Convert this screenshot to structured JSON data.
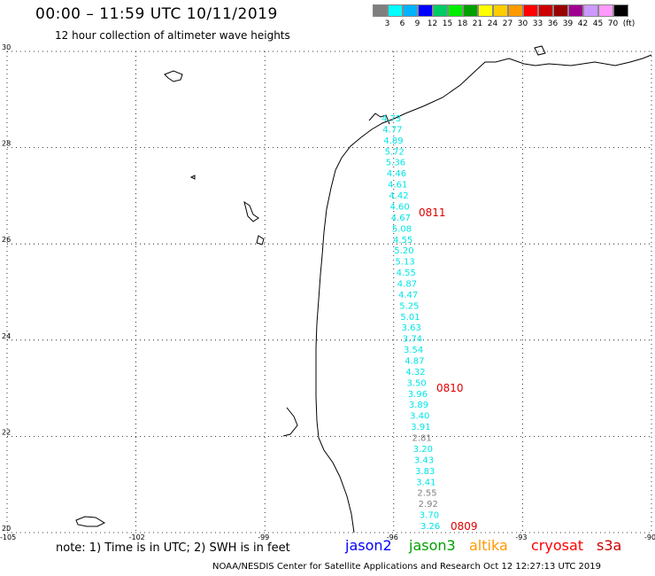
{
  "header": {
    "title": "00:00 – 11:59 UTC 10/11/2019",
    "subtitle": "12 hour collection of altimeter wave heights"
  },
  "legend": {
    "colors": [
      "#7f7f7f",
      "#00ffff",
      "#00b3ff",
      "#0000ff",
      "#00cc66",
      "#00ee00",
      "#00a000",
      "#ffff00",
      "#ffcc00",
      "#ff9900",
      "#ff0000",
      "#cc0000",
      "#990000",
      "#a00090",
      "#cc99ff",
      "#ff99ff",
      "#000000"
    ],
    "labels": [
      "3",
      "6",
      "9",
      "12",
      "15",
      "18",
      "21",
      "24",
      "27",
      "30",
      "33",
      "36",
      "39",
      "42",
      "45",
      "70"
    ],
    "unit": "(ft)"
  },
  "axes": {
    "lat_labels": [
      "30",
      "28",
      "26",
      "24",
      "22",
      "20"
    ],
    "lon_labels": [
      "-105",
      "-102",
      "-99",
      "-96",
      "-93",
      "-90"
    ]
  },
  "wave_heights": [
    {
      "value": "4.73",
      "color": "#00e5e5"
    },
    {
      "value": "4.77",
      "color": "#00e5e5"
    },
    {
      "value": "4.89",
      "color": "#00e5e5"
    },
    {
      "value": "5.72",
      "color": "#00e5e5"
    },
    {
      "value": "5.36",
      "color": "#00e5e5"
    },
    {
      "value": "4.46",
      "color": "#00e5e5"
    },
    {
      "value": "4.61",
      "color": "#00e5e5"
    },
    {
      "value": "4.42",
      "color": "#00e5e5"
    },
    {
      "value": "4.60",
      "color": "#00e5e5"
    },
    {
      "value": "4.67",
      "color": "#00e5e5"
    },
    {
      "value": "5.08",
      "color": "#00e5e5"
    },
    {
      "value": "4.55",
      "color": "#00e5e5"
    },
    {
      "value": "5.20",
      "color": "#00e5e5"
    },
    {
      "value": "5.13",
      "color": "#00e5e5"
    },
    {
      "value": "4.55",
      "color": "#00e5e5"
    },
    {
      "value": "4.87",
      "color": "#00e5e5"
    },
    {
      "value": "4.47",
      "color": "#00e5e5"
    },
    {
      "value": "5.25",
      "color": "#00e5e5"
    },
    {
      "value": "5.01",
      "color": "#00e5e5"
    },
    {
      "value": "3.63",
      "color": "#00e5e5"
    },
    {
      "value": "3.74",
      "color": "#00e5e5"
    },
    {
      "value": "3.54",
      "color": "#00e5e5"
    },
    {
      "value": "4.87",
      "color": "#00e5e5"
    },
    {
      "value": "4.32",
      "color": "#00e5e5"
    },
    {
      "value": "3.50",
      "color": "#00e5e5"
    },
    {
      "value": "3.96",
      "color": "#00e5e5"
    },
    {
      "value": "3.89",
      "color": "#00e5e5"
    },
    {
      "value": "3.40",
      "color": "#00e5e5"
    },
    {
      "value": "3.91",
      "color": "#00e5e5"
    },
    {
      "value": "2.81",
      "color": "#808080"
    },
    {
      "value": "3.20",
      "color": "#00e5e5"
    },
    {
      "value": "3.43",
      "color": "#00e5e5"
    },
    {
      "value": "3.83",
      "color": "#00e5e5"
    },
    {
      "value": "3.41",
      "color": "#00e5e5"
    },
    {
      "value": "2.55",
      "color": "#808080"
    },
    {
      "value": "2.92",
      "color": "#808080"
    },
    {
      "value": "3.70",
      "color": "#00e5e5"
    },
    {
      "value": "3.26",
      "color": "#00e5e5"
    }
  ],
  "pass_labels": [
    "0811",
    "0810",
    "0809"
  ],
  "footer": {
    "note": "note: 1) Time is in UTC; 2) SWH is in feet",
    "satellites": [
      {
        "name": "jason2",
        "color": "#0000ff"
      },
      {
        "name": "jason3",
        "color": "#00a000"
      },
      {
        "name": "altika",
        "color": "#ff9900"
      },
      {
        "name": "cryosat",
        "color": "#ff0000"
      },
      {
        "name": "s3a",
        "color": "#cc0000"
      }
    ],
    "credit": "NOAA/NESDIS Center for Satellite Applications and Research    Oct 12 12:27:13 UTC 2019"
  }
}
